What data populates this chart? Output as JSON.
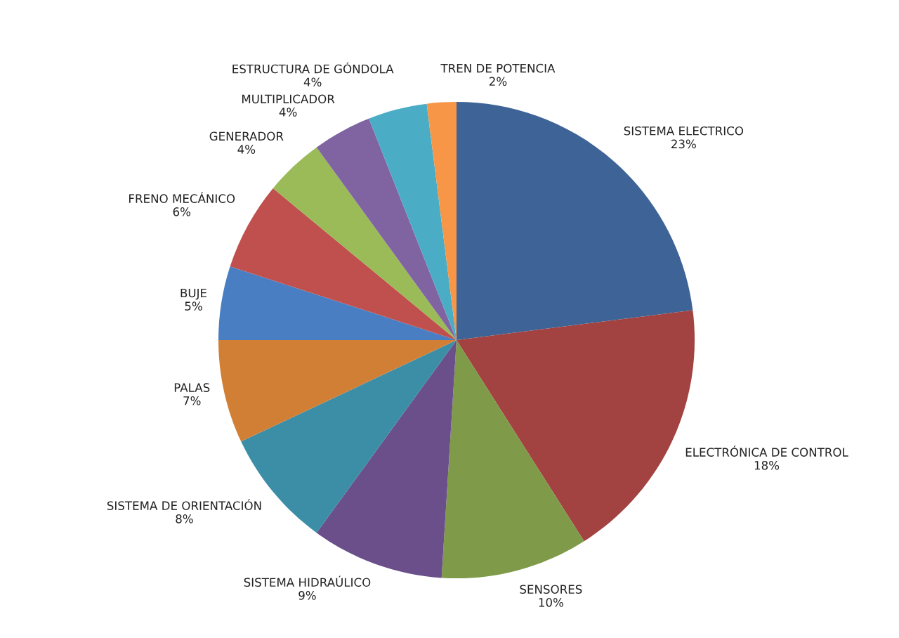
{
  "chart_data": {
    "type": "pie",
    "categories": [
      "SISTEMA ELECTRICO",
      "ELECTRÓNICA DE CONTROL",
      "SENSORES",
      "SISTEMA HIDRAÚLICO",
      "SISTEMA DE ORIENTACIÓN",
      "PALAS",
      "BUJE",
      "FRENO MECÁNICO",
      "GENERADOR",
      "MULTIPLICADOR",
      "ESTRUCTURA DE GÓNDOLA",
      "TREN DE POTENCIA"
    ],
    "values": [
      23,
      18,
      10,
      9,
      8,
      7,
      5,
      6,
      4,
      4,
      4,
      2
    ],
    "value_labels": [
      "23%",
      "18%",
      "10%",
      "9%",
      "8%",
      "7%",
      "5%",
      "6%",
      "4%",
      "4%",
      "4%",
      "2%"
    ],
    "colors": [
      "#3e6497",
      "#a24341",
      "#7f9a48",
      "#6a4f8b",
      "#3b8ea6",
      "#d17f35",
      "#4a7ec3",
      "#c0504d",
      "#9bbb59",
      "#8064a2",
      "#4bacc6",
      "#f79646"
    ]
  }
}
